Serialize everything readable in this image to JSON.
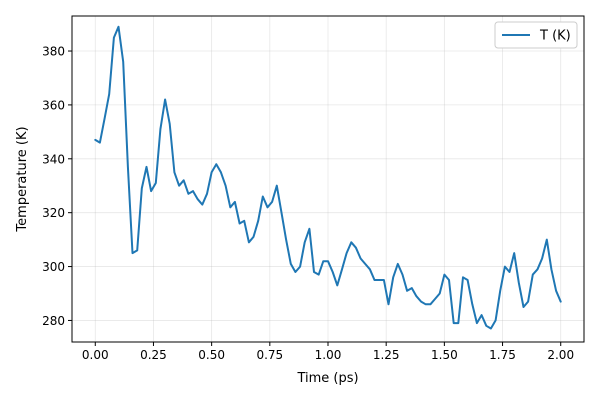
{
  "chart_data": {
    "type": "line",
    "xlabel": "Time (ps)",
    "ylabel": "Temperature (K)",
    "xlim": [
      -0.1,
      2.1
    ],
    "ylim": [
      272,
      393
    ],
    "xticks": [
      0.0,
      0.25,
      0.5,
      0.75,
      1.0,
      1.25,
      1.5,
      1.75,
      2.0
    ],
    "xtick_labels": [
      "0.00",
      "0.25",
      "0.50",
      "0.75",
      "1.00",
      "1.25",
      "1.50",
      "1.75",
      "2.00"
    ],
    "yticks": [
      280,
      300,
      320,
      340,
      360,
      380
    ],
    "ytick_labels": [
      "280",
      "300",
      "320",
      "340",
      "360",
      "380"
    ],
    "grid": true,
    "legend_position": "top-right",
    "series": [
      {
        "name": "T (K)",
        "color": "#1f77b4",
        "x": [
          0.0,
          0.02,
          0.04,
          0.06,
          0.08,
          0.1,
          0.12,
          0.14,
          0.16,
          0.18,
          0.2,
          0.22,
          0.24,
          0.26,
          0.28,
          0.3,
          0.32,
          0.34,
          0.36,
          0.38,
          0.4,
          0.42,
          0.44,
          0.46,
          0.48,
          0.5,
          0.52,
          0.54,
          0.56,
          0.58,
          0.6,
          0.62,
          0.64,
          0.66,
          0.68,
          0.7,
          0.72,
          0.74,
          0.76,
          0.78,
          0.8,
          0.82,
          0.84,
          0.86,
          0.88,
          0.9,
          0.92,
          0.94,
          0.96,
          0.98,
          1.0,
          1.02,
          1.04,
          1.06,
          1.08,
          1.1,
          1.12,
          1.14,
          1.16,
          1.18,
          1.2,
          1.22,
          1.24,
          1.26,
          1.28,
          1.3,
          1.32,
          1.34,
          1.36,
          1.38,
          1.4,
          1.42,
          1.44,
          1.46,
          1.48,
          1.5,
          1.52,
          1.54,
          1.56,
          1.58,
          1.6,
          1.62,
          1.64,
          1.66,
          1.68,
          1.7,
          1.72,
          1.74,
          1.76,
          1.78,
          1.8,
          1.82,
          1.84,
          1.86,
          1.88,
          1.9,
          1.92,
          1.94,
          1.96,
          1.98,
          2.0
        ],
        "values": [
          347,
          346,
          355,
          364,
          385,
          389,
          376,
          337,
          305,
          306,
          329,
          337,
          328,
          331,
          351,
          362,
          353,
          335,
          330,
          332,
          327,
          328,
          325,
          323,
          327,
          335,
          338,
          335,
          330,
          322,
          324,
          316,
          317,
          309,
          311,
          317,
          326,
          322,
          324,
          330,
          320,
          310,
          301,
          298,
          300,
          309,
          314,
          298,
          297,
          302,
          302,
          298,
          293,
          299,
          305,
          309,
          307,
          303,
          301,
          299,
          295,
          295,
          295,
          286,
          296,
          301,
          297,
          291,
          292,
          289,
          287,
          286,
          286,
          288,
          290,
          297,
          295,
          279,
          279,
          296,
          295,
          286,
          279,
          282,
          278,
          277,
          280,
          291,
          300,
          298,
          305,
          294,
          285,
          287,
          297,
          299,
          303,
          310,
          299,
          291,
          287
        ]
      }
    ]
  }
}
